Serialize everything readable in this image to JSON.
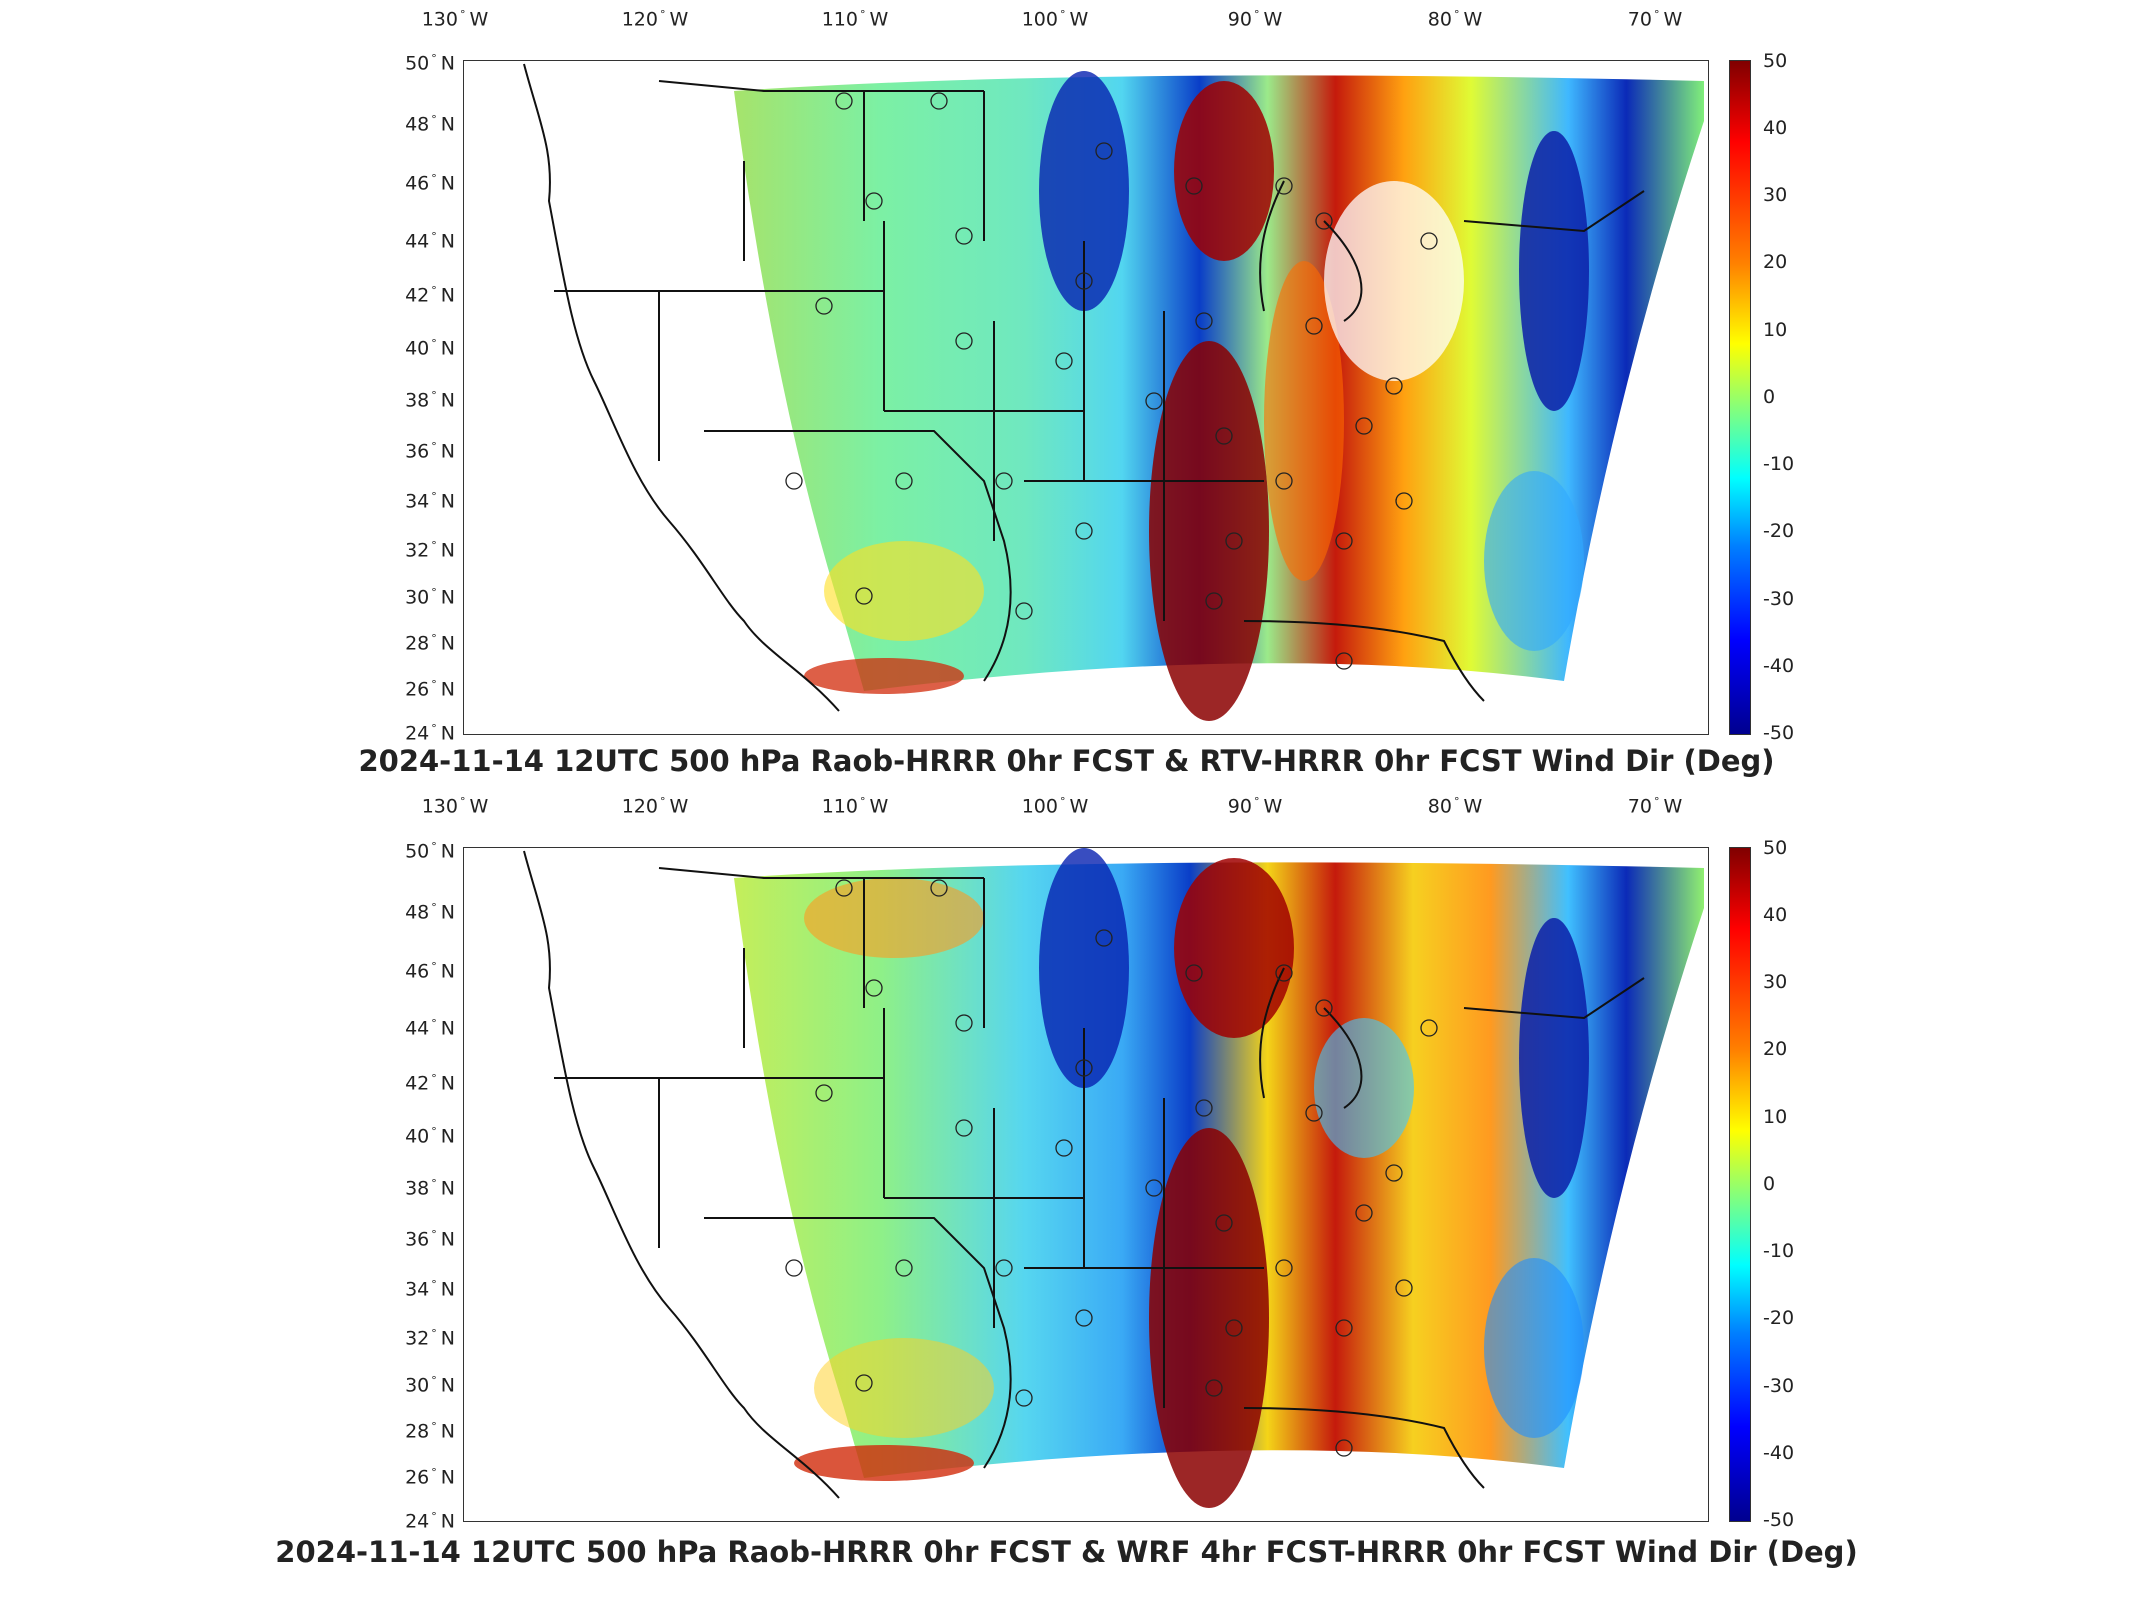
{
  "colors": {
    "colormap": [
      "#00008f",
      "#0000ff",
      "#0080ff",
      "#00ffff",
      "#80ff80",
      "#ffff00",
      "#ff8000",
      "#ff0000",
      "#800000"
    ]
  },
  "panels": [
    {
      "title": "2024-11-14 12UTC 500 hPa Raob-HRRR 0hr FCST & RTV-HRRR 0hr FCST Wind Dir (Deg)",
      "lon_labels": [
        "130",
        "120",
        "110",
        "100",
        "90",
        "80",
        "70"
      ],
      "lon_hemi": "W",
      "lat_labels": [
        "50",
        "48",
        "46",
        "44",
        "42",
        "40",
        "38",
        "36",
        "34",
        "32",
        "30",
        "28",
        "26",
        "24"
      ],
      "lat_hemi": "N",
      "colorbar_ticks": [
        "50",
        "40",
        "30",
        "20",
        "10",
        "0",
        "-10",
        "-20",
        "-30",
        "-40",
        "-50"
      ],
      "colorbar_range": [
        -50,
        50
      ]
    },
    {
      "title": "2024-11-14 12UTC 500 hPa Raob-HRRR 0hr FCST & WRF 4hr FCST-HRRR 0hr FCST Wind Dir (Deg)",
      "lon_labels": [
        "130",
        "120",
        "110",
        "100",
        "90",
        "80",
        "70"
      ],
      "lon_hemi": "W",
      "lat_labels": [
        "50",
        "48",
        "46",
        "44",
        "42",
        "40",
        "38",
        "36",
        "34",
        "32",
        "30",
        "28",
        "26",
        "24"
      ],
      "lat_hemi": "N",
      "colorbar_ticks": [
        "50",
        "40",
        "30",
        "20",
        "10",
        "0",
        "-10",
        "-20",
        "-30",
        "-40",
        "-50"
      ],
      "colorbar_range": [
        -50,
        50
      ]
    }
  ]
}
